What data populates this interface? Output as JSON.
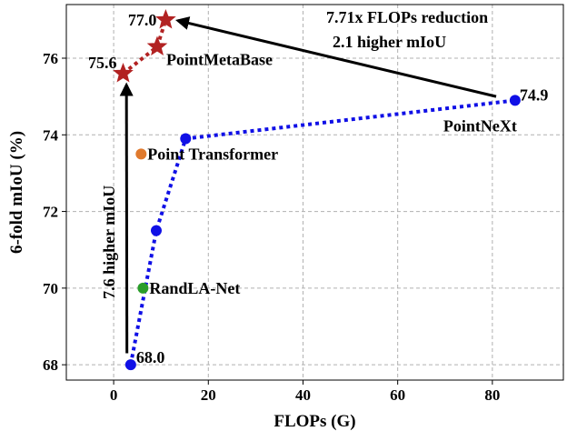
{
  "chart_data": {
    "type": "scatter",
    "xlabel": "FLOPs (G)",
    "ylabel": "6-fold mIoU (%)",
    "xlim": [
      -10,
      95
    ],
    "ylim": [
      67.6,
      77.4
    ],
    "xticks": [
      0,
      20,
      40,
      60,
      80
    ],
    "yticks": [
      68,
      70,
      72,
      74,
      76
    ],
    "x_tick_labels": [
      "0",
      "20",
      "40",
      "60",
      "80"
    ],
    "y_tick_labels": [
      "68",
      "70",
      "72",
      "74",
      "76"
    ],
    "grid": true,
    "series": [
      {
        "name": "PointNeXt",
        "color": "#1010e6",
        "marker": "circle",
        "line": "dotted",
        "points": [
          {
            "x": 3.6,
            "y": 68.0
          },
          {
            "x": 9.0,
            "y": 71.5
          },
          {
            "x": 15.2,
            "y": 73.9
          },
          {
            "x": 84.8,
            "y": 74.9
          }
        ]
      },
      {
        "name": "PointMetaBase",
        "color": "#b22222",
        "marker": "star",
        "line": "dotted",
        "points": [
          {
            "x": 2.0,
            "y": 75.6
          },
          {
            "x": 9.2,
            "y": 76.3
          },
          {
            "x": 11.0,
            "y": 77.0
          }
        ]
      },
      {
        "name": "Point Transformer",
        "color": "#e07a2e",
        "marker": "circle",
        "line": "none",
        "points": [
          {
            "x": 5.8,
            "y": 73.5
          }
        ]
      },
      {
        "name": "RandLA-Net",
        "color": "#2a9d2a",
        "marker": "circle",
        "line": "none",
        "points": [
          {
            "x": 6.2,
            "y": 70.0
          }
        ]
      }
    ],
    "annotations": {
      "val_68": "68.0",
      "val_75_6": "75.6",
      "val_77": "77.0",
      "val_74_9": "74.9",
      "name_pointmetabase": "PointMetaBase",
      "name_pointnext": "PointNeXt",
      "name_pointtransformer": "Point Transformer",
      "name_randla": "RandLA-Net",
      "flops_reduction": "7.71x FLOPs reduction",
      "miou_higher_21": "2.1 higher mIoU",
      "miou_higher_76": "7.6 higher mIoU"
    }
  }
}
